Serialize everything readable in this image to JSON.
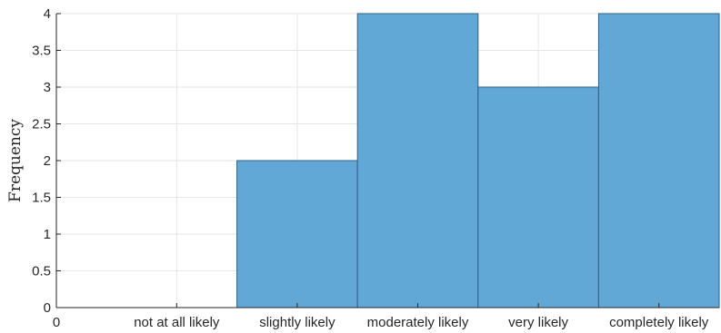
{
  "chart_data": {
    "type": "bar",
    "categories": [
      "not at all likely",
      "slightly likely",
      "moderately likely",
      "very likely",
      "completely likely"
    ],
    "values": [
      0,
      2,
      4,
      3,
      4
    ],
    "title": "",
    "xlabel": "",
    "ylabel": "Frequency",
    "x_origin_label": "0",
    "ylim": [
      0,
      4
    ],
    "yticks": [
      0,
      0.5,
      1,
      1.5,
      2,
      2.5,
      3,
      3.5,
      4
    ],
    "ytick_labels": [
      "0",
      "0.5",
      "1",
      "1.5",
      "2",
      "2.5",
      "3",
      "3.5",
      "4"
    ],
    "grid": true,
    "legend": "none",
    "bar_color": "#62a8d6",
    "bar_edge_color": "#2f5f86"
  }
}
